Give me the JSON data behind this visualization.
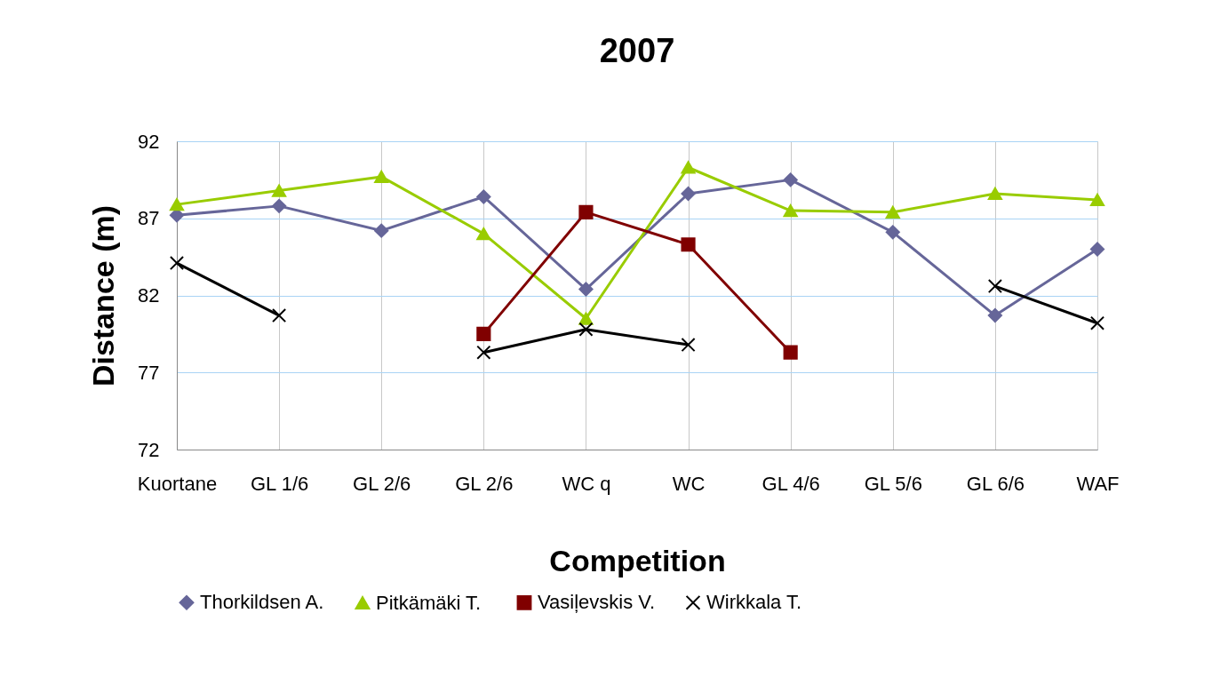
{
  "chart_data": {
    "type": "line",
    "title": "2007",
    "xlabel": "Competition",
    "ylabel": "Distance (m)",
    "categories": [
      "Kuortane",
      "GL 1/6",
      "GL 2/6",
      "GL 2/6",
      "WC q",
      "WC",
      "GL 4/6",
      "GL 5/6",
      "GL 6/6",
      "WAF"
    ],
    "series": [
      {
        "name": "Thorkildsen A.",
        "color": "#666699",
        "marker": "diamond",
        "values": [
          87.2,
          87.8,
          86.2,
          88.4,
          82.4,
          88.6,
          89.5,
          86.1,
          80.7,
          85.0
        ]
      },
      {
        "name": "Pitkämäki  T.",
        "color": "#99cc00",
        "marker": "triangle",
        "values": [
          87.9,
          88.8,
          89.7,
          86.0,
          80.5,
          90.3,
          87.5,
          87.4,
          88.6,
          88.2
        ]
      },
      {
        "name": "Vasiļevskis V.",
        "color": "#800000",
        "marker": "square",
        "values": [
          null,
          null,
          null,
          79.5,
          87.4,
          85.3,
          78.3,
          null,
          null,
          null
        ]
      },
      {
        "name": "Wirkkala T.",
        "color": "#000000",
        "marker": "cross",
        "values": [
          84.1,
          80.7,
          null,
          78.3,
          79.8,
          78.8,
          null,
          null,
          82.6,
          80.2
        ]
      }
    ],
    "ylim": [
      72,
      92
    ],
    "yticks": [
      72,
      77,
      82,
      87,
      92
    ],
    "grid": true,
    "legend": "bottom"
  }
}
